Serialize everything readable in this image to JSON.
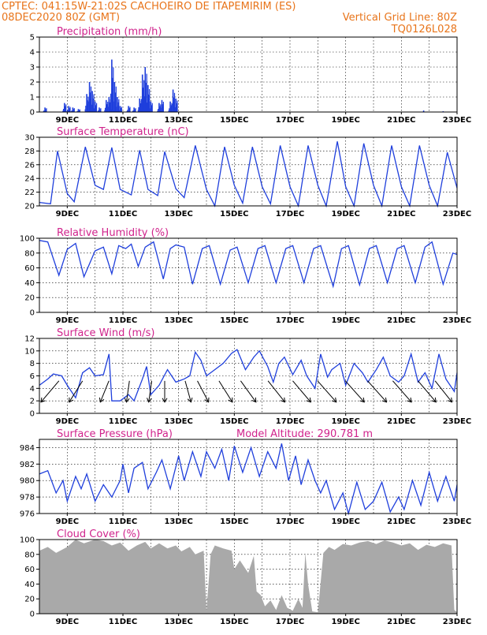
{
  "header": {
    "line1": "CPTEC:   041:15W-21:02S   CACHOEIRO DE ITAPEMIRIM (ES)",
    "line2_left": "08DEC2020 80Z (GMT)",
    "line2_right": "Vertical Grid Line: 80Z",
    "line3_right": "TQ0126L028"
  },
  "colors": {
    "header": "#e8741a",
    "title": "#d0238c",
    "series": "#1f3fdc",
    "cloud": "#a9a9a9"
  },
  "x_ticks": [
    "9DEC",
    "11DEC",
    "13DEC",
    "15DEC",
    "17DEC",
    "19DEC",
    "21DEC",
    "23DEC"
  ],
  "chart_data": [
    {
      "id": "precip",
      "type": "bar",
      "title": "Precipitation (mm/h)",
      "ylim": [
        0,
        5
      ],
      "yticks": [
        0,
        1,
        2,
        3,
        4,
        5
      ],
      "x_range_days": [
        8.0,
        23.0
      ],
      "points": [
        [
          8.2,
          0.3
        ],
        [
          8.9,
          0.6
        ],
        [
          9.05,
          0.4
        ],
        [
          9.2,
          0.3
        ],
        [
          9.4,
          0.2
        ],
        [
          9.7,
          1.2
        ],
        [
          9.8,
          2.0
        ],
        [
          9.9,
          1.4
        ],
        [
          10.0,
          0.7
        ],
        [
          10.15,
          0.3
        ],
        [
          10.4,
          0.8
        ],
        [
          10.5,
          1.0
        ],
        [
          10.6,
          3.5
        ],
        [
          10.7,
          2.0
        ],
        [
          10.8,
          1.0
        ],
        [
          10.9,
          0.4
        ],
        [
          11.2,
          0.4
        ],
        [
          11.4,
          0.3
        ],
        [
          11.6,
          0.9
        ],
        [
          11.7,
          2.5
        ],
        [
          11.8,
          3.0
        ],
        [
          11.9,
          1.8
        ],
        [
          12.0,
          0.7
        ],
        [
          12.3,
          0.6
        ],
        [
          12.4,
          0.8
        ],
        [
          12.7,
          0.7
        ],
        [
          12.8,
          1.5
        ],
        [
          12.9,
          0.9
        ],
        [
          21.8,
          0.1
        ],
        [
          22.5,
          0.05
        ]
      ]
    },
    {
      "id": "temp",
      "type": "line",
      "title": "Surface Temperature (nC)",
      "ylim": [
        20,
        30
      ],
      "yticks": [
        20,
        22,
        24,
        26,
        28,
        30
      ],
      "x_range_days": [
        8.0,
        23.0
      ],
      "points": [
        [
          8.0,
          20.5
        ],
        [
          8.4,
          20.3
        ],
        [
          8.65,
          28.0
        ],
        [
          9.0,
          21.8
        ],
        [
          9.25,
          20.6
        ],
        [
          9.65,
          28.6
        ],
        [
          10.0,
          23.0
        ],
        [
          10.3,
          22.4
        ],
        [
          10.6,
          28.5
        ],
        [
          10.9,
          22.4
        ],
        [
          11.3,
          21.6
        ],
        [
          11.6,
          28.1
        ],
        [
          11.9,
          22.4
        ],
        [
          12.25,
          21.5
        ],
        [
          12.5,
          27.9
        ],
        [
          12.9,
          22.5
        ],
        [
          13.2,
          21.2
        ],
        [
          13.6,
          28.8
        ],
        [
          14.0,
          22.4
        ],
        [
          14.3,
          20.0
        ],
        [
          14.65,
          28.6
        ],
        [
          15.0,
          23.0
        ],
        [
          15.3,
          20.4
        ],
        [
          15.65,
          28.6
        ],
        [
          16.0,
          22.8
        ],
        [
          16.3,
          20.3
        ],
        [
          16.65,
          28.8
        ],
        [
          17.0,
          22.8
        ],
        [
          17.3,
          20.0
        ],
        [
          17.65,
          28.8
        ],
        [
          18.0,
          23.0
        ],
        [
          18.3,
          20.0
        ],
        [
          18.7,
          29.4
        ],
        [
          19.0,
          22.8
        ],
        [
          19.3,
          20.0
        ],
        [
          19.65,
          29.1
        ],
        [
          20.0,
          23.0
        ],
        [
          20.3,
          20.0
        ],
        [
          20.65,
          28.8
        ],
        [
          21.0,
          22.8
        ],
        [
          21.3,
          20.0
        ],
        [
          21.65,
          28.8
        ],
        [
          22.0,
          23.0
        ],
        [
          22.3,
          20.0
        ],
        [
          22.65,
          27.8
        ],
        [
          23.0,
          22.6
        ]
      ]
    },
    {
      "id": "rh",
      "type": "line",
      "title": "Relative Humidity (%)",
      "ylim": [
        0,
        100
      ],
      "yticks": [
        0,
        20,
        40,
        60,
        80,
        100
      ],
      "x_range_days": [
        8.0,
        23.0
      ],
      "points": [
        [
          8.0,
          97
        ],
        [
          8.3,
          95
        ],
        [
          8.7,
          50
        ],
        [
          9.0,
          85
        ],
        [
          9.3,
          93
        ],
        [
          9.6,
          48
        ],
        [
          10.0,
          83
        ],
        [
          10.3,
          88
        ],
        [
          10.6,
          52
        ],
        [
          10.85,
          90
        ],
        [
          11.1,
          86
        ],
        [
          11.3,
          92
        ],
        [
          11.55,
          62
        ],
        [
          11.8,
          88
        ],
        [
          12.1,
          95
        ],
        [
          12.45,
          45
        ],
        [
          12.7,
          86
        ],
        [
          12.9,
          91
        ],
        [
          13.2,
          88
        ],
        [
          13.5,
          38
        ],
        [
          13.85,
          86
        ],
        [
          14.1,
          90
        ],
        [
          14.5,
          38
        ],
        [
          14.85,
          84
        ],
        [
          15.1,
          88
        ],
        [
          15.5,
          40
        ],
        [
          15.85,
          86
        ],
        [
          16.1,
          90
        ],
        [
          16.5,
          40
        ],
        [
          16.85,
          86
        ],
        [
          17.1,
          90
        ],
        [
          17.5,
          40
        ],
        [
          17.85,
          86
        ],
        [
          18.1,
          90
        ],
        [
          18.55,
          35
        ],
        [
          18.85,
          86
        ],
        [
          19.1,
          90
        ],
        [
          19.5,
          37
        ],
        [
          19.85,
          86
        ],
        [
          20.1,
          90
        ],
        [
          20.5,
          40
        ],
        [
          20.85,
          86
        ],
        [
          21.1,
          90
        ],
        [
          21.5,
          40
        ],
        [
          21.85,
          88
        ],
        [
          22.1,
          95
        ],
        [
          22.5,
          38
        ],
        [
          22.85,
          80
        ],
        [
          23.0,
          78
        ]
      ]
    },
    {
      "id": "wind",
      "type": "line",
      "title": "Surface Wind (m/s)",
      "ylim": [
        0,
        12
      ],
      "yticks": [
        0,
        2,
        4,
        6,
        8,
        10,
        12
      ],
      "x_range_days": [
        8.0,
        23.0
      ],
      "points": [
        [
          8.0,
          4.5
        ],
        [
          8.3,
          5.5
        ],
        [
          8.5,
          6.3
        ],
        [
          8.8,
          6.0
        ],
        [
          9.0,
          4.5
        ],
        [
          9.3,
          2.5
        ],
        [
          9.55,
          6.5
        ],
        [
          9.8,
          7.3
        ],
        [
          10.0,
          6.0
        ],
        [
          10.3,
          6.2
        ],
        [
          10.5,
          9.5
        ],
        [
          10.6,
          2.0
        ],
        [
          10.9,
          2.0
        ],
        [
          11.2,
          3.0
        ],
        [
          11.4,
          2.0
        ],
        [
          11.7,
          5.5
        ],
        [
          11.85,
          7.5
        ],
        [
          12.0,
          3.0
        ],
        [
          12.3,
          4.5
        ],
        [
          12.6,
          7.0
        ],
        [
          12.9,
          5.0
        ],
        [
          13.2,
          5.5
        ],
        [
          13.4,
          6.0
        ],
        [
          13.6,
          9.8
        ],
        [
          13.8,
          8.5
        ],
        [
          14.0,
          6.0
        ],
        [
          14.3,
          7.0
        ],
        [
          14.6,
          8.0
        ],
        [
          14.9,
          9.6
        ],
        [
          15.1,
          10.2
        ],
        [
          15.4,
          7.0
        ],
        [
          15.7,
          9.0
        ],
        [
          15.9,
          10.0
        ],
        [
          16.2,
          7.5
        ],
        [
          16.4,
          5.0
        ],
        [
          16.6,
          8.0
        ],
        [
          16.8,
          9.0
        ],
        [
          17.1,
          6.2
        ],
        [
          17.4,
          8.5
        ],
        [
          17.6,
          6.0
        ],
        [
          17.9,
          4.0
        ],
        [
          18.1,
          9.5
        ],
        [
          18.35,
          5.8
        ],
        [
          18.5,
          7.0
        ],
        [
          18.8,
          8.0
        ],
        [
          19.0,
          4.5
        ],
        [
          19.3,
          8.0
        ],
        [
          19.6,
          6.5
        ],
        [
          19.8,
          5.0
        ],
        [
          20.1,
          7.0
        ],
        [
          20.35,
          9.0
        ],
        [
          20.6,
          6.0
        ],
        [
          20.9,
          5.0
        ],
        [
          21.1,
          6.0
        ],
        [
          21.35,
          9.5
        ],
        [
          21.6,
          5.0
        ],
        [
          21.85,
          6.5
        ],
        [
          22.1,
          4.0
        ],
        [
          22.35,
          9.5
        ],
        [
          22.6,
          5.5
        ],
        [
          22.9,
          3.5
        ],
        [
          23.0,
          6.5
        ]
      ],
      "arrows": [
        [
          8.5,
          2
        ],
        [
          9.4,
          5
        ],
        [
          10.4,
          7
        ],
        [
          11.2,
          9
        ],
        [
          12.0,
          9
        ],
        [
          12.5,
          10
        ],
        [
          13.3,
          12
        ],
        [
          13.8,
          14
        ],
        [
          14.6,
          15
        ],
        [
          15.4,
          16
        ],
        [
          16.4,
          17
        ],
        [
          17.3,
          18
        ],
        [
          18.2,
          19
        ],
        [
          19.2,
          20
        ],
        [
          20.0,
          20
        ],
        [
          20.9,
          19
        ],
        [
          21.8,
          18
        ],
        [
          22.4,
          17
        ]
      ]
    },
    {
      "id": "pressure",
      "type": "line",
      "title": "Surface Pressure (hPa)",
      "annotation": "Model Altitude: 290.781 m",
      "ylim": [
        976,
        985
      ],
      "yticks": [
        976,
        978,
        980,
        982,
        984
      ],
      "x_range_days": [
        8.0,
        23.0
      ],
      "points": [
        [
          8.0,
          980.8
        ],
        [
          8.3,
          981.2
        ],
        [
          8.6,
          978.5
        ],
        [
          8.85,
          980.0
        ],
        [
          9.0,
          977.5
        ],
        [
          9.3,
          980.5
        ],
        [
          9.5,
          979.0
        ],
        [
          9.7,
          980.8
        ],
        [
          10.0,
          977.5
        ],
        [
          10.3,
          979.5
        ],
        [
          10.6,
          978.0
        ],
        [
          10.9,
          980.0
        ],
        [
          11.0,
          982.0
        ],
        [
          11.2,
          978.5
        ],
        [
          11.4,
          981.5
        ],
        [
          11.7,
          982.2
        ],
        [
          11.9,
          979.0
        ],
        [
          12.2,
          981.0
        ],
        [
          12.4,
          982.5
        ],
        [
          12.7,
          979.0
        ],
        [
          13.0,
          983.0
        ],
        [
          13.2,
          980.0
        ],
        [
          13.5,
          983.5
        ],
        [
          13.8,
          980.5
        ],
        [
          14.0,
          983.5
        ],
        [
          14.3,
          981.5
        ],
        [
          14.55,
          983.8
        ],
        [
          14.8,
          980.0
        ],
        [
          15.0,
          984.2
        ],
        [
          15.3,
          981.0
        ],
        [
          15.6,
          984.0
        ],
        [
          15.9,
          980.5
        ],
        [
          16.2,
          983.5
        ],
        [
          16.5,
          981.5
        ],
        [
          16.7,
          984.5
        ],
        [
          16.95,
          980.0
        ],
        [
          17.2,
          983.0
        ],
        [
          17.4,
          979.5
        ],
        [
          17.65,
          982.5
        ],
        [
          17.9,
          980.0
        ],
        [
          18.1,
          978.5
        ],
        [
          18.3,
          980.0
        ],
        [
          18.6,
          976.5
        ],
        [
          18.9,
          978.5
        ],
        [
          19.1,
          976.0
        ],
        [
          19.4,
          979.8
        ],
        [
          19.7,
          976.5
        ],
        [
          20.0,
          977.5
        ],
        [
          20.3,
          979.8
        ],
        [
          20.6,
          976.2
        ],
        [
          20.9,
          978.0
        ],
        [
          21.1,
          976.5
        ],
        [
          21.4,
          980.0
        ],
        [
          21.7,
          977.0
        ],
        [
          22.0,
          981.0
        ],
        [
          22.3,
          977.5
        ],
        [
          22.6,
          980.5
        ],
        [
          22.9,
          977.5
        ],
        [
          23.0,
          979.5
        ]
      ]
    },
    {
      "id": "cloud",
      "type": "area",
      "title": "Cloud Cover (%)",
      "ylim": [
        0,
        100
      ],
      "yticks": [
        0,
        20,
        40,
        60,
        80,
        100
      ],
      "x_range_days": [
        8.0,
        23.0
      ],
      "points": [
        [
          8.0,
          85
        ],
        [
          8.3,
          90
        ],
        [
          8.6,
          82
        ],
        [
          9.0,
          90
        ],
        [
          9.3,
          100
        ],
        [
          9.6,
          95
        ],
        [
          10.0,
          100
        ],
        [
          10.3,
          98
        ],
        [
          10.6,
          92
        ],
        [
          10.9,
          96
        ],
        [
          11.2,
          85
        ],
        [
          11.5,
          92
        ],
        [
          11.8,
          97
        ],
        [
          12.0,
          88
        ],
        [
          12.3,
          95
        ],
        [
          12.6,
          88
        ],
        [
          12.9,
          92
        ],
        [
          13.1,
          84
        ],
        [
          13.4,
          90
        ],
        [
          13.6,
          80
        ],
        [
          13.9,
          85
        ],
        [
          14.0,
          3
        ],
        [
          14.15,
          80
        ],
        [
          14.3,
          92
        ],
        [
          14.6,
          88
        ],
        [
          14.9,
          85
        ],
        [
          15.0,
          60
        ],
        [
          15.2,
          72
        ],
        [
          15.5,
          55
        ],
        [
          15.7,
          78
        ],
        [
          15.8,
          30
        ],
        [
          15.95,
          25
        ],
        [
          16.1,
          10
        ],
        [
          16.3,
          18
        ],
        [
          16.5,
          5
        ],
        [
          16.7,
          25
        ],
        [
          16.9,
          8
        ],
        [
          17.1,
          4
        ],
        [
          17.3,
          20
        ],
        [
          17.45,
          8
        ],
        [
          17.55,
          82
        ],
        [
          17.65,
          40
        ],
        [
          17.8,
          3
        ],
        [
          18.0,
          2
        ],
        [
          18.2,
          82
        ],
        [
          18.4,
          90
        ],
        [
          18.6,
          86
        ],
        [
          18.9,
          94
        ],
        [
          19.2,
          92
        ],
        [
          19.5,
          96
        ],
        [
          19.8,
          98
        ],
        [
          20.1,
          94
        ],
        [
          20.4,
          99
        ],
        [
          20.7,
          96
        ],
        [
          21.0,
          92
        ],
        [
          21.3,
          95
        ],
        [
          21.6,
          86
        ],
        [
          21.9,
          93
        ],
        [
          22.2,
          90
        ],
        [
          22.5,
          95
        ],
        [
          22.8,
          92
        ],
        [
          22.9,
          5
        ],
        [
          23.0,
          2
        ]
      ]
    }
  ]
}
